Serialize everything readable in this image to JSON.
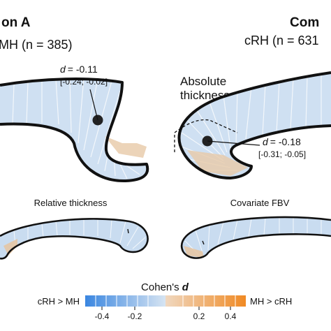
{
  "panel_a": {
    "title_fragment": "on A",
    "group_label": "MH (n = 385)",
    "effect": {
      "d_symbol": "d",
      "value": "= -0.11",
      "ci": "[-0.24; -0.02]"
    }
  },
  "panel_b": {
    "title_fragment": "Com",
    "group_label": "cRH (n = 631",
    "absolute_label_line1": "Absolute",
    "absolute_label_line2": "thickness",
    "effect": {
      "d_symbol": "d",
      "value": "= -0.18",
      "ci": "[-0.31; -0.05]"
    }
  },
  "bottom_left_title": "Relative thickness",
  "bottom_right_title": "Covariate FBV",
  "legend": {
    "title": "Cohen's ",
    "title_symbol": "d",
    "left_label": "cRH > MH",
    "right_label": "MH > cRH",
    "ticks": [
      "-0.4",
      "-0.2",
      "0.2",
      "0.4"
    ],
    "colors": {
      "strong_blue": "#3a86e0",
      "pale_blue": "#d6e4f2",
      "pale_orange": "#f0d8c0",
      "strong_orange": "#f08a24"
    }
  }
}
